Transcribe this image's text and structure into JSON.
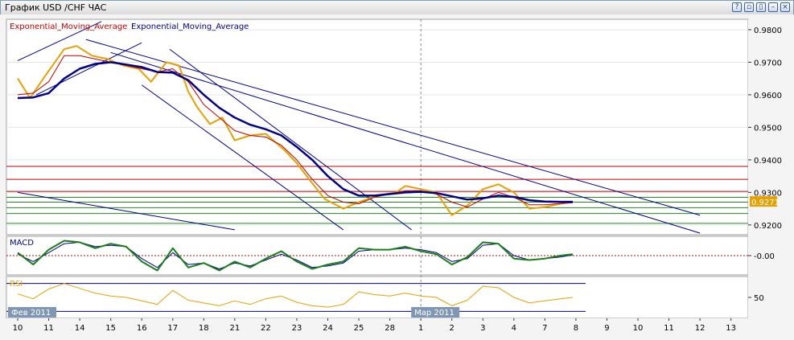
{
  "window": {
    "title": "График USD /CHF  ЧАС",
    "buttons": [
      {
        "name": "help",
        "glyph": "?"
      },
      {
        "name": "restore",
        "glyph": "▫"
      },
      {
        "name": "tile",
        "glyph": "▯"
      },
      {
        "name": "minimize",
        "glyph": "–"
      },
      {
        "name": "close",
        "glyph": "×"
      }
    ]
  },
  "legend": {
    "ema1": "Exponential_Moving_Average",
    "ema2": "Exponential_Moving_Average",
    "ema1_color": "#c00000",
    "ema2_color": "#00008b"
  },
  "chart_data": [
    {
      "type": "line",
      "instrument": "USD/CHF",
      "timeframe": "ЧАС",
      "y_ticks": [
        "0.9800",
        "0.9700",
        "0.9600",
        "0.9500",
        "0.9400",
        "0.9300",
        "0.9200"
      ],
      "ylim": [
        0.917,
        0.9832
      ],
      "current_price_label": "0.9271",
      "current_price": 0.9271,
      "price_color": "#e6a100",
      "series": [
        {
          "name": "price",
          "color": "#e6a100",
          "x": [
            0,
            0.4,
            0.9,
            1.5,
            1.9,
            2.4,
            2.9,
            3.4,
            3.9,
            4.3,
            4.8,
            5.2,
            5.5,
            5.8,
            6.2,
            6.6,
            7.0,
            7.5,
            8.0,
            8.6,
            9.0,
            9.4,
            9.9,
            10.5,
            11.0,
            11.6,
            12.2,
            12.5,
            13.0,
            13.5,
            14.0,
            14.5,
            15.0,
            15.5,
            16.0,
            16.5,
            17.0,
            17.5,
            17.9
          ],
          "values": [
            0.965,
            0.959,
            0.966,
            0.974,
            0.975,
            0.972,
            0.971,
            0.969,
            0.968,
            0.964,
            0.97,
            0.969,
            0.961,
            0.956,
            0.951,
            0.953,
            0.946,
            0.9475,
            0.948,
            0.943,
            0.939,
            0.934,
            0.928,
            0.925,
            0.927,
            0.929,
            0.93,
            0.932,
            0.931,
            0.93,
            0.923,
            0.926,
            0.931,
            0.9325,
            0.93,
            0.925,
            0.9255,
            0.9265,
            0.9271
          ]
        },
        {
          "name": "Exponential_Moving_Average",
          "color": "#c00000",
          "x": [
            0,
            0.5,
            1.0,
            1.5,
            2.0,
            2.5,
            3.0,
            3.5,
            4.0,
            4.5,
            5.0,
            5.5,
            6.0,
            6.5,
            7.0,
            7.5,
            8.0,
            8.5,
            9.0,
            9.5,
            10.0,
            10.5,
            11.0,
            11.5,
            12.0,
            12.5,
            13.0,
            13.5,
            14.0,
            14.5,
            15.0,
            15.5,
            16.0,
            16.5,
            17.0,
            17.5,
            17.9
          ],
          "values": [
            0.96,
            0.9605,
            0.964,
            0.972,
            0.972,
            0.971,
            0.97,
            0.969,
            0.968,
            0.967,
            0.968,
            0.964,
            0.957,
            0.953,
            0.949,
            0.9475,
            0.947,
            0.9445,
            0.94,
            0.934,
            0.929,
            0.927,
            0.9265,
            0.9285,
            0.9295,
            0.9305,
            0.9305,
            0.9295,
            0.927,
            0.9255,
            0.928,
            0.93,
            0.9285,
            0.9262,
            0.9262,
            0.9266,
            0.9268
          ]
        },
        {
          "name": "Exponential_Moving_Average",
          "color": "#00008b",
          "x": [
            0,
            0.5,
            1.0,
            1.5,
            2.0,
            2.5,
            3.0,
            3.5,
            4.0,
            4.5,
            5.0,
            5.5,
            6.0,
            6.5,
            7.0,
            7.5,
            8.0,
            8.5,
            9.0,
            9.5,
            10.0,
            10.5,
            11.0,
            11.5,
            12.0,
            12.5,
            13.0,
            13.5,
            14.0,
            14.5,
            15.0,
            15.5,
            16.0,
            16.5,
            17.0,
            17.5,
            17.9
          ],
          "values": [
            0.959,
            0.9592,
            0.9605,
            0.965,
            0.968,
            0.9695,
            0.97,
            0.9693,
            0.9685,
            0.967,
            0.9668,
            0.9645,
            0.96,
            0.956,
            0.953,
            0.9508,
            0.9494,
            0.9475,
            0.944,
            0.94,
            0.935,
            0.931,
            0.929,
            0.929,
            0.9295,
            0.93,
            0.9302,
            0.9298,
            0.9288,
            0.9278,
            0.9282,
            0.929,
            0.9286,
            0.9276,
            0.9272,
            0.9271,
            0.9271
          ]
        }
      ],
      "horizontal_levels": [
        {
          "value": 0.938,
          "color": "#c00000"
        },
        {
          "value": 0.934,
          "color": "#c00000"
        },
        {
          "value": 0.9303,
          "color": "#c00000"
        },
        {
          "value": 0.9285,
          "color": "#228b22"
        },
        {
          "value": 0.927,
          "color": "#228b22"
        },
        {
          "value": 0.9253,
          "color": "#228b22"
        },
        {
          "value": 0.9235,
          "color": "#228b22"
        },
        {
          "value": 0.9205,
          "color": "#228b22"
        }
      ],
      "trend_lines": [
        {
          "color": "#00008b",
          "x": [
            0,
            2.7
          ],
          "values": [
            0.9705,
            0.9825
          ]
        },
        {
          "color": "#00008b",
          "x": [
            0.6,
            4.0
          ],
          "values": [
            0.96,
            0.976
          ]
        },
        {
          "color": "#00008b",
          "x": [
            2.2,
            22.0
          ],
          "values": [
            0.977,
            0.923
          ]
        },
        {
          "color": "#00008b",
          "x": [
            3.0,
            22.0
          ],
          "values": [
            0.973,
            0.9175
          ]
        },
        {
          "color": "#00008b",
          "x": [
            4.0,
            10.5
          ],
          "values": [
            0.963,
            0.9185
          ]
        },
        {
          "color": "#00008b",
          "x": [
            4.9,
            12.7
          ],
          "values": [
            0.974,
            0.9185
          ]
        },
        {
          "color": "#00008b",
          "x": [
            0,
            7.0
          ],
          "values": [
            0.93,
            0.9185
          ]
        }
      ]
    },
    {
      "type": "line",
      "indicator": "MACD",
      "title": "MACD",
      "y_ticks": [
        "-0.00"
      ],
      "series": [
        {
          "name": "macd",
          "color": "#1a7f1a",
          "x": [
            0,
            0.5,
            1.0,
            1.5,
            2.0,
            2.5,
            3.0,
            3.5,
            4.0,
            4.5,
            5.0,
            5.5,
            6.0,
            6.5,
            7.0,
            7.5,
            8.0,
            8.5,
            9.0,
            9.5,
            10.0,
            10.5,
            11.0,
            11.5,
            12.0,
            12.5,
            13.0,
            13.5,
            14.0,
            14.5,
            15.0,
            15.5,
            16.0,
            16.5,
            17.0,
            17.5,
            17.9
          ],
          "values": [
            0.2,
            -0.6,
            0.4,
            1.0,
            0.9,
            0.5,
            0.8,
            0.6,
            -0.4,
            -1.0,
            0.5,
            -0.8,
            -0.5,
            -1.0,
            -0.4,
            -0.8,
            -0.2,
            0.3,
            -0.4,
            -0.9,
            -0.6,
            -0.4,
            0.5,
            0.4,
            0.4,
            0.6,
            0.3,
            0.1,
            -0.6,
            -0.1,
            0.9,
            0.8,
            -0.2,
            -0.3,
            -0.2,
            0.0,
            0.1
          ]
        },
        {
          "name": "signal",
          "color": "#00008b",
          "x": [
            0,
            0.5,
            1.0,
            1.5,
            2.0,
            2.5,
            3.0,
            3.5,
            4.0,
            4.5,
            5.0,
            5.5,
            6.0,
            6.5,
            7.0,
            7.5,
            8.0,
            8.5,
            9.0,
            9.5,
            10.0,
            10.5,
            11.0,
            11.5,
            12.0,
            12.5,
            13.0,
            13.5,
            14.0,
            14.5,
            15.0,
            15.5,
            16.0,
            16.5,
            17.0,
            17.5,
            17.9
          ],
          "values": [
            0.1,
            -0.4,
            0.2,
            0.8,
            0.9,
            0.6,
            0.7,
            0.6,
            -0.2,
            -0.8,
            0.2,
            -0.6,
            -0.5,
            -0.9,
            -0.5,
            -0.7,
            -0.3,
            0.1,
            -0.3,
            -0.8,
            -0.7,
            -0.5,
            0.3,
            0.4,
            0.4,
            0.5,
            0.4,
            0.2,
            -0.4,
            -0.2,
            0.7,
            0.8,
            0.0,
            -0.3,
            -0.2,
            -0.1,
            0.05
          ]
        }
      ],
      "ylim": [
        -1.3,
        1.3
      ]
    },
    {
      "type": "line",
      "indicator": "RSI",
      "title": "RSI",
      "y_ticks": [
        "50"
      ],
      "ylim": [
        20,
        80
      ],
      "series": [
        {
          "name": "rsi",
          "color": "#e6a100",
          "x": [
            0,
            0.5,
            1.0,
            1.5,
            2.0,
            2.5,
            3.0,
            3.5,
            4.0,
            4.5,
            5.0,
            5.5,
            6.0,
            6.5,
            7.0,
            7.5,
            8.0,
            8.5,
            9.0,
            9.5,
            10.0,
            10.5,
            11.0,
            11.5,
            12.0,
            12.5,
            13.0,
            13.5,
            14.0,
            14.5,
            15.0,
            15.5,
            16.0,
            16.5,
            17.0,
            17.5,
            17.9
          ],
          "values": [
            55,
            48,
            62,
            70,
            63,
            56,
            52,
            50,
            45,
            40,
            60,
            46,
            42,
            38,
            45,
            40,
            48,
            52,
            43,
            38,
            36,
            40,
            58,
            54,
            52,
            56,
            52,
            50,
            38,
            46,
            66,
            64,
            50,
            42,
            45,
            48,
            50
          ]
        }
      ]
    }
  ],
  "x_axis": {
    "labels": [
      "10",
      "11",
      "14",
      "15",
      "16",
      "17",
      "18",
      "21",
      "22",
      "23",
      "24",
      "25",
      "28",
      "1",
      "2",
      "3",
      "4",
      "7",
      "8",
      "9",
      "10",
      "11",
      "12",
      "13"
    ],
    "month_labels": [
      {
        "text": "Фев 2011",
        "index": 0
      },
      {
        "text": "Мар 2011",
        "index": 13
      }
    ],
    "cursor_index": 13
  }
}
